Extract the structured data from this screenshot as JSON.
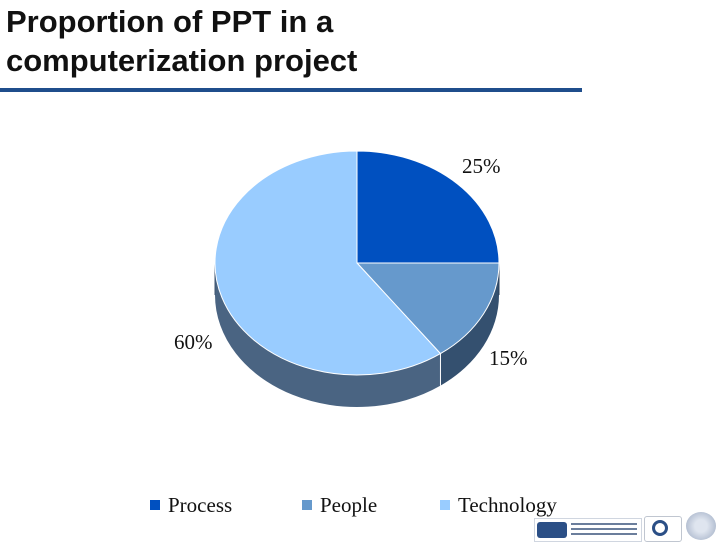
{
  "slide": {
    "title": "Proportion of PPT in a computerization project",
    "rule_color": "#1f4e8c"
  },
  "chart_data": {
    "type": "pie",
    "title": "Proportion of PPT in a computerization project",
    "style": "3d",
    "categories": [
      "Process",
      "People",
      "Technology"
    ],
    "values": [
      25,
      15,
      60
    ],
    "value_labels": [
      "25%",
      "15%",
      "60%"
    ],
    "colors": [
      "#0050c0",
      "#6699cc",
      "#99ccff"
    ],
    "side_colors": [
      "#1c3a6b",
      "#34506f",
      "#4a6482"
    ],
    "legend": {
      "position": "bottom",
      "items": [
        "Process",
        "People",
        "Technology"
      ]
    }
  },
  "logos": [
    "nisg-logo",
    "egov-logo",
    "seal-logo"
  ]
}
